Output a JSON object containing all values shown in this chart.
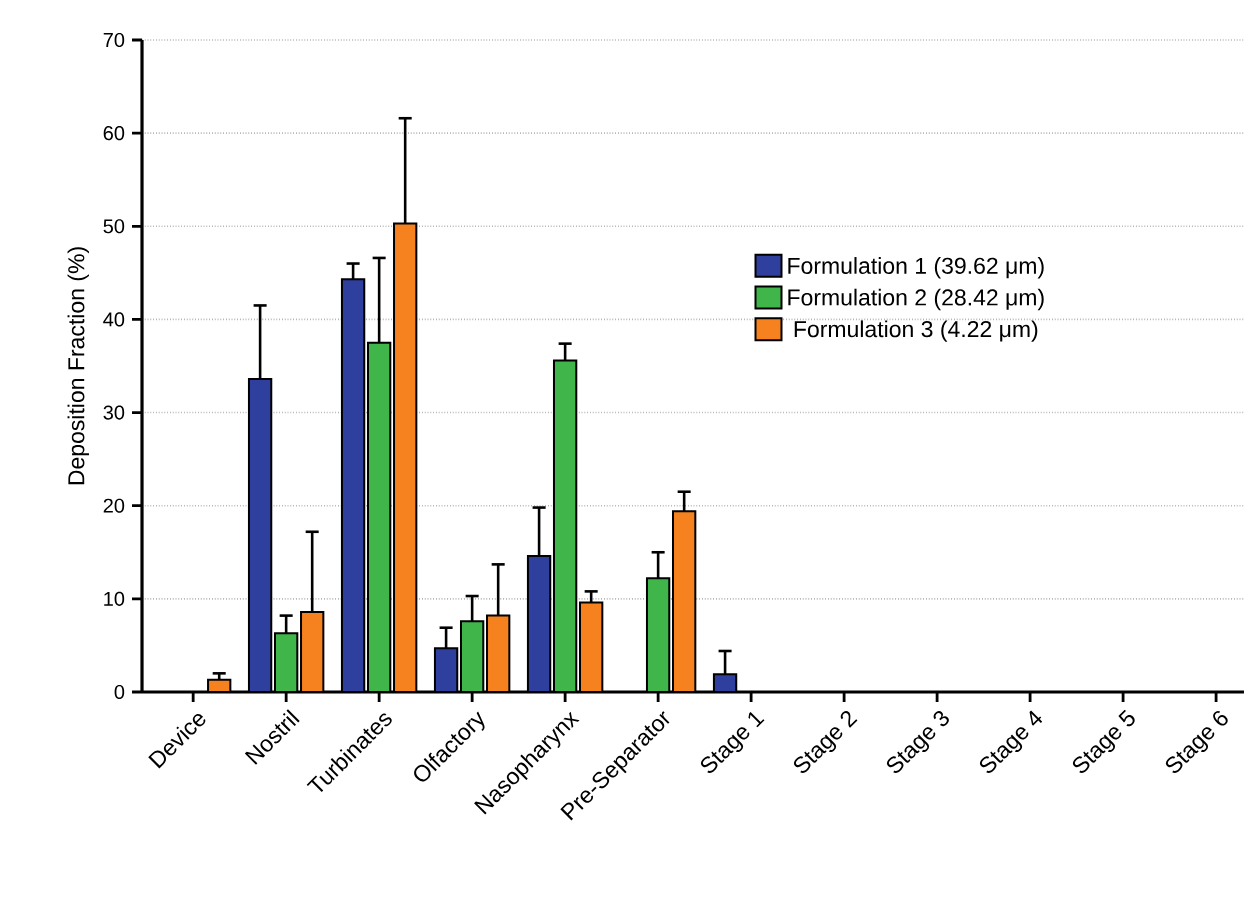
{
  "chart_data": {
    "type": "bar",
    "ylabel": "Deposition Fraction (%)",
    "categories": [
      "Device",
      "Nostril",
      "Turbinates",
      "Olfactory",
      "Nasopharynx",
      "Pre-Separator",
      "Stage 1",
      "Stage 2",
      "Stage 3",
      "Stage 4",
      "Stage 5",
      "Stage 6"
    ],
    "series": [
      {
        "name": "Formulation 1 (39.62 μm)",
        "color": "#2e3f9e",
        "values": [
          null,
          33.6,
          44.3,
          4.7,
          14.6,
          null,
          1.9,
          null,
          null,
          null,
          null,
          null
        ],
        "errors": [
          null,
          [
            33.6,
            41.5
          ],
          [
            44.3,
            46.0
          ],
          [
            4.7,
            6.9
          ],
          [
            14.6,
            19.8
          ],
          null,
          [
            1.9,
            4.4
          ],
          null,
          null,
          null,
          null,
          null
        ]
      },
      {
        "name": "Formulation 2 (28.42 μm)",
        "color": "#3fb54a",
        "values": [
          null,
          6.3,
          37.5,
          7.6,
          35.6,
          12.2,
          null,
          null,
          null,
          null,
          null,
          null
        ],
        "errors": [
          null,
          [
            6.3,
            8.2
          ],
          [
            37.5,
            46.6
          ],
          [
            7.6,
            10.3
          ],
          [
            35.6,
            37.4
          ],
          [
            12.2,
            15.0
          ],
          null,
          null,
          null,
          null,
          null,
          null
        ]
      },
      {
        "name": "Formulation 3 (4.22 μm)",
        "color": "#f5821f",
        "values": [
          1.3,
          8.6,
          50.3,
          8.2,
          9.6,
          19.4,
          null,
          null,
          null,
          null,
          null,
          null
        ],
        "errors": [
          [
            1.3,
            2.0
          ],
          [
            8.6,
            17.2
          ],
          [
            50.3,
            61.6
          ],
          [
            8.2,
            13.7
          ],
          [
            9.6,
            10.8
          ],
          [
            19.4,
            21.5
          ],
          null,
          null,
          null,
          null,
          null,
          null
        ]
      }
    ],
    "ylim": [
      0,
      70
    ],
    "yticks": [
      0,
      10,
      20,
      30,
      40,
      50,
      60,
      70
    ],
    "grid": "y",
    "legend": "right"
  }
}
